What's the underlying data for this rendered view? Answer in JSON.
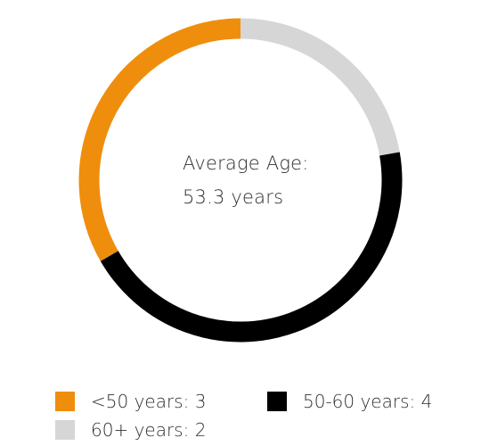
{
  "chart_data": {
    "type": "pie",
    "donut": true,
    "center": {
      "title": "Average Age:",
      "value_text": "53.3  years"
    },
    "slices": [
      {
        "label": "60+ years",
        "value": 2,
        "color": "#d6d6d6",
        "legend_text": "60+ years: 2"
      },
      {
        "label": "50-60 years",
        "value": 4,
        "color": "#000000",
        "legend_text": "50-60 years: 4"
      },
      {
        "label": "<50 years",
        "value": 3,
        "color": "#ef8e0c",
        "legend_text": "<50 years: 3"
      }
    ],
    "legend": [
      {
        "text": "<50 years: 3",
        "color": "#ef8e0c"
      },
      {
        "text": "50-60 years: 4",
        "color": "#000000"
      },
      {
        "text": "60+ years: 2",
        "color": "#d6d6d6"
      }
    ],
    "legend_placement": "bottom"
  }
}
